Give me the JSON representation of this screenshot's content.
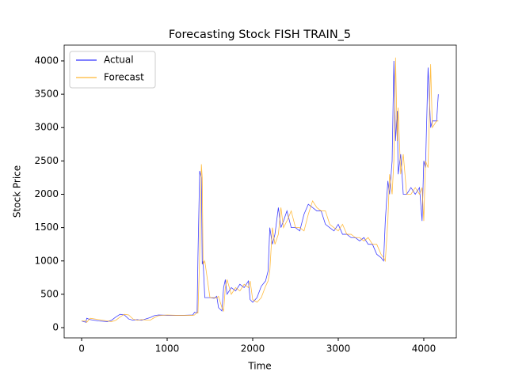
{
  "chart_data": {
    "type": "line",
    "title": "Forecasting Stock FISH TRAIN_5",
    "x_label": "Time",
    "y_label": "Stock Price",
    "x": [
      0,
      50,
      60,
      100,
      200,
      300,
      350,
      400,
      450,
      500,
      550,
      600,
      650,
      700,
      800,
      850,
      900,
      1000,
      1100,
      1200,
      1300,
      1320,
      1350,
      1360,
      1380,
      1400,
      1410,
      1420,
      1440,
      1500,
      1550,
      1580,
      1600,
      1640,
      1660,
      1680,
      1700,
      1750,
      1800,
      1850,
      1900,
      1950,
      1970,
      2000,
      2050,
      2100,
      2150,
      2180,
      2200,
      2230,
      2260,
      2300,
      2330,
      2360,
      2400,
      2450,
      2500,
      2550,
      2600,
      2650,
      2700,
      2750,
      2800,
      2850,
      2900,
      2950,
      3000,
      3050,
      3100,
      3150,
      3200,
      3250,
      3300,
      3350,
      3400,
      3450,
      3500,
      3530,
      3550,
      3580,
      3600,
      3630,
      3650,
      3670,
      3690,
      3700,
      3730,
      3760,
      3800,
      3850,
      3900,
      3950,
      3980,
      4000,
      4020,
      4050,
      4080,
      4100,
      4150,
      4170
    ],
    "series": [
      {
        "name": "Actual",
        "color": "#0000ff",
        "values": [
          100,
          80,
          140,
          120,
          100,
          90,
          110,
          160,
          200,
          190,
          130,
          110,
          120,
          110,
          150,
          180,
          190,
          185,
          185,
          185,
          190,
          230,
          220,
          1070,
          2350,
          2250,
          950,
          1000,
          450,
          450,
          440,
          470,
          300,
          250,
          600,
          720,
          500,
          600,
          550,
          650,
          600,
          700,
          420,
          380,
          450,
          620,
          700,
          850,
          1500,
          1250,
          1400,
          1800,
          1500,
          1600,
          1750,
          1500,
          1500,
          1450,
          1700,
          1850,
          1800,
          1750,
          1750,
          1550,
          1500,
          1450,
          1550,
          1400,
          1400,
          1350,
          1350,
          1300,
          1350,
          1250,
          1250,
          1100,
          1050,
          1000,
          1600,
          2200,
          2000,
          2500,
          4000,
          2800,
          3250,
          2300,
          2600,
          2000,
          2000,
          2100,
          2000,
          2100,
          1600,
          2500,
          2400,
          3900,
          3000,
          3100,
          3100,
          3500
        ]
      },
      {
        "name": "Forecast",
        "color": "#ffa500",
        "values": [
          100,
          100,
          80,
          140,
          120,
          100,
          90,
          110,
          160,
          200,
          190,
          130,
          110,
          120,
          110,
          150,
          180,
          190,
          185,
          185,
          185,
          190,
          230,
          220,
          1070,
          2450,
          2250,
          950,
          1000,
          450,
          450,
          440,
          470,
          300,
          250,
          600,
          720,
          500,
          600,
          550,
          650,
          600,
          700,
          420,
          380,
          450,
          620,
          700,
          850,
          1500,
          1250,
          1400,
          1800,
          1500,
          1600,
          1750,
          1500,
          1500,
          1450,
          1700,
          1900,
          1800,
          1750,
          1750,
          1550,
          1500,
          1450,
          1550,
          1400,
          1400,
          1350,
          1350,
          1300,
          1350,
          1250,
          1250,
          1100,
          1050,
          1000,
          1600,
          2300,
          2000,
          2500,
          4050,
          2800,
          3300,
          2300,
          2600,
          2000,
          2000,
          2100,
          2000,
          2100,
          1600,
          2500,
          2400,
          3950,
          3000,
          3100,
          3100
        ]
      }
    ],
    "xlim": [
      -204,
      4380
    ],
    "ylim": [
      -154,
      4237
    ],
    "xticks": [
      0,
      1000,
      2000,
      3000,
      4000
    ],
    "yticks": [
      0,
      500,
      1000,
      1500,
      2000,
      2500,
      3000,
      3500,
      4000
    ],
    "legend": "upper left",
    "grid": false
  }
}
